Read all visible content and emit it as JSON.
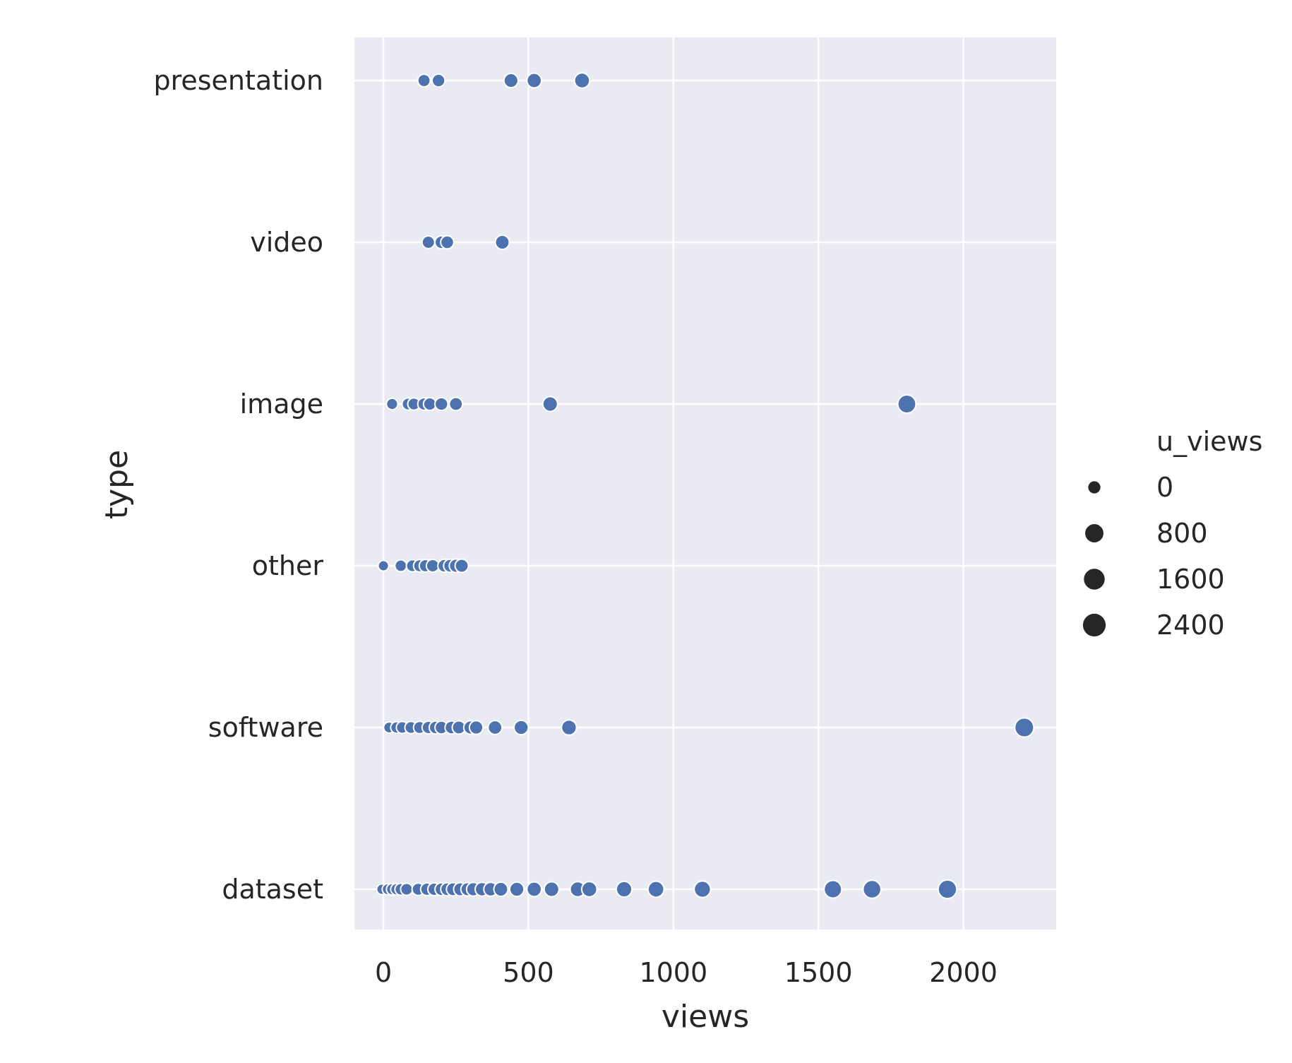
{
  "chart_data": {
    "type": "scatter",
    "xlabel": "views",
    "ylabel": "type",
    "xlim": [
      -100,
      2320
    ],
    "x_ticks": [
      0,
      500,
      1000,
      1500,
      2000
    ],
    "x_tick_labels": [
      "0",
      "500",
      "1000",
      "1500",
      "2000"
    ],
    "categories": [
      "presentation",
      "video",
      "image",
      "other",
      "software",
      "dataset"
    ],
    "grid": true,
    "background": "#EAEAF2",
    "point_color": "#4C72B0",
    "legend": {
      "title": "u_views",
      "placement": "right",
      "entries": [
        {
          "label": "0",
          "value": 0
        },
        {
          "label": "800",
          "value": 800
        },
        {
          "label": "1600",
          "value": 1600
        },
        {
          "label": "2400",
          "value": 2400
        }
      ]
    },
    "points": [
      {
        "category": "presentation",
        "views": 140,
        "u_views": 110
      },
      {
        "category": "presentation",
        "views": 190,
        "u_views": 150
      },
      {
        "category": "presentation",
        "views": 440,
        "u_views": 370
      },
      {
        "category": "presentation",
        "views": 520,
        "u_views": 450
      },
      {
        "category": "presentation",
        "views": 685,
        "u_views": 600
      },
      {
        "category": "video",
        "views": 155,
        "u_views": 120
      },
      {
        "category": "video",
        "views": 200,
        "u_views": 160
      },
      {
        "category": "video",
        "views": 220,
        "u_views": 180
      },
      {
        "category": "video",
        "views": 410,
        "u_views": 340
      },
      {
        "category": "image",
        "views": 30,
        "u_views": 20
      },
      {
        "category": "image",
        "views": 85,
        "u_views": 60
      },
      {
        "category": "image",
        "views": 105,
        "u_views": 80
      },
      {
        "category": "image",
        "views": 140,
        "u_views": 110
      },
      {
        "category": "image",
        "views": 160,
        "u_views": 130
      },
      {
        "category": "image",
        "views": 200,
        "u_views": 160
      },
      {
        "category": "image",
        "views": 250,
        "u_views": 200
      },
      {
        "category": "image",
        "views": 575,
        "u_views": 500
      },
      {
        "category": "image",
        "views": 1805,
        "u_views": 1650
      },
      {
        "category": "other",
        "views": 0,
        "u_views": 0
      },
      {
        "category": "other",
        "views": 60,
        "u_views": 40
      },
      {
        "category": "other",
        "views": 100,
        "u_views": 70
      },
      {
        "category": "other",
        "views": 125,
        "u_views": 90
      },
      {
        "category": "other",
        "views": 145,
        "u_views": 110
      },
      {
        "category": "other",
        "views": 170,
        "u_views": 130
      },
      {
        "category": "other",
        "views": 210,
        "u_views": 160
      },
      {
        "category": "other",
        "views": 230,
        "u_views": 180
      },
      {
        "category": "other",
        "views": 250,
        "u_views": 220
      },
      {
        "category": "other",
        "views": 270,
        "u_views": 210
      },
      {
        "category": "software",
        "views": 20,
        "u_views": 10
      },
      {
        "category": "software",
        "views": 45,
        "u_views": 30
      },
      {
        "category": "software",
        "views": 65,
        "u_views": 50
      },
      {
        "category": "software",
        "views": 95,
        "u_views": 70
      },
      {
        "category": "software",
        "views": 125,
        "u_views": 90
      },
      {
        "category": "software",
        "views": 155,
        "u_views": 120
      },
      {
        "category": "software",
        "views": 180,
        "u_views": 140
      },
      {
        "category": "software",
        "views": 200,
        "u_views": 150
      },
      {
        "category": "software",
        "views": 235,
        "u_views": 180
      },
      {
        "category": "software",
        "views": 260,
        "u_views": 200
      },
      {
        "category": "software",
        "views": 300,
        "u_views": 230
      },
      {
        "category": "software",
        "views": 320,
        "u_views": 260
      },
      {
        "category": "software",
        "views": 385,
        "u_views": 310
      },
      {
        "category": "software",
        "views": 475,
        "u_views": 400
      },
      {
        "category": "software",
        "views": 640,
        "u_views": 560
      },
      {
        "category": "software",
        "views": 2210,
        "u_views": 2050
      },
      {
        "category": "dataset",
        "views": -5,
        "u_views": 0
      },
      {
        "category": "dataset",
        "views": 15,
        "u_views": 10
      },
      {
        "category": "dataset",
        "views": 30,
        "u_views": 20
      },
      {
        "category": "dataset",
        "views": 45,
        "u_views": 30
      },
      {
        "category": "dataset",
        "views": 60,
        "u_views": 45
      },
      {
        "category": "dataset",
        "views": 80,
        "u_views": 60
      },
      {
        "category": "dataset",
        "views": 120,
        "u_views": 90
      },
      {
        "category": "dataset",
        "views": 150,
        "u_views": 120
      },
      {
        "category": "dataset",
        "views": 175,
        "u_views": 130
      },
      {
        "category": "dataset",
        "views": 200,
        "u_views": 150
      },
      {
        "category": "dataset",
        "views": 220,
        "u_views": 170
      },
      {
        "category": "dataset",
        "views": 240,
        "u_views": 190
      },
      {
        "category": "dataset",
        "views": 265,
        "u_views": 210
      },
      {
        "category": "dataset",
        "views": 290,
        "u_views": 230
      },
      {
        "category": "dataset",
        "views": 310,
        "u_views": 250
      },
      {
        "category": "dataset",
        "views": 340,
        "u_views": 280
      },
      {
        "category": "dataset",
        "views": 370,
        "u_views": 300
      },
      {
        "category": "dataset",
        "views": 405,
        "u_views": 340
      },
      {
        "category": "dataset",
        "views": 460,
        "u_views": 390
      },
      {
        "category": "dataset",
        "views": 520,
        "u_views": 450
      },
      {
        "category": "dataset",
        "views": 580,
        "u_views": 500
      },
      {
        "category": "dataset",
        "views": 670,
        "u_views": 580
      },
      {
        "category": "dataset",
        "views": 710,
        "u_views": 620
      },
      {
        "category": "dataset",
        "views": 830,
        "u_views": 730
      },
      {
        "category": "dataset",
        "views": 940,
        "u_views": 830
      },
      {
        "category": "dataset",
        "views": 1100,
        "u_views": 980
      },
      {
        "category": "dataset",
        "views": 1550,
        "u_views": 1400
      },
      {
        "category": "dataset",
        "views": 1685,
        "u_views": 1550
      },
      {
        "category": "dataset",
        "views": 1945,
        "u_views": 1800
      }
    ]
  }
}
